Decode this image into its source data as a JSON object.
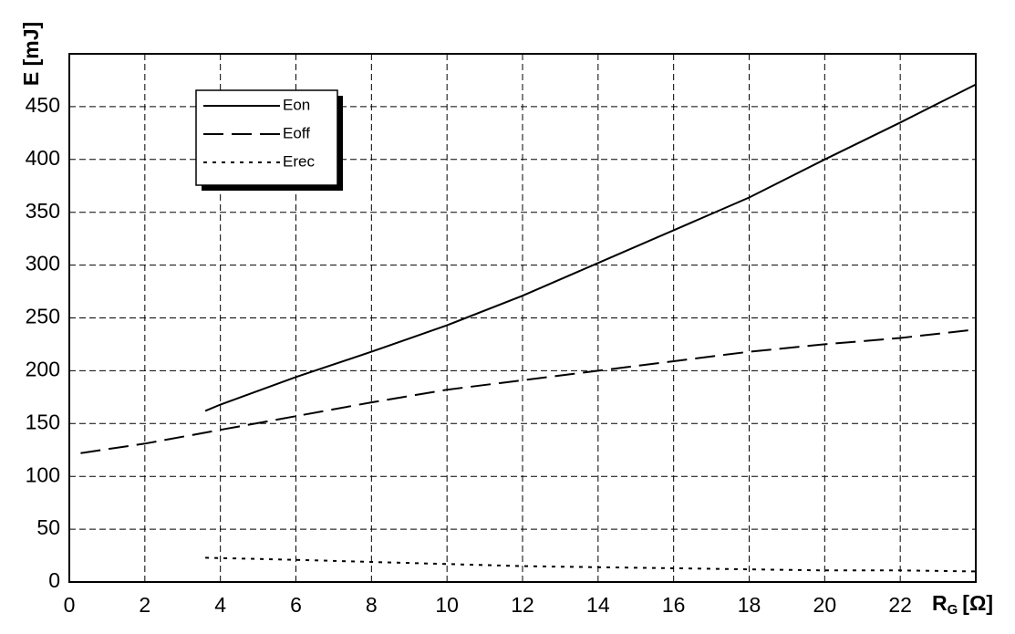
{
  "chart_data": {
    "type": "line",
    "xlabel": "R",
    "xlabel_sub": "G",
    "xunit": "[Ω]",
    "ylabel": "E [mJ]",
    "xlim": [
      0,
      24
    ],
    "ylim": [
      0,
      500
    ],
    "x_ticks": [
      "0",
      "2",
      "4",
      "6",
      "8",
      "10",
      "12",
      "14",
      "16",
      "18",
      "20",
      "22"
    ],
    "y_ticks": [
      "0",
      "50",
      "100",
      "150",
      "200",
      "250",
      "300",
      "350",
      "400",
      "450"
    ],
    "grid": true,
    "legend_position": "top-left",
    "series": [
      {
        "name": "Eon",
        "style": "solid",
        "x": [
          3.6,
          4,
          6,
          8,
          10,
          12,
          14,
          16,
          18,
          20,
          22,
          24
        ],
        "y": [
          162,
          168,
          194,
          218,
          243,
          271,
          302,
          333,
          364,
          400,
          435,
          471
        ]
      },
      {
        "name": "Eoff",
        "style": "dashed",
        "x": [
          0.3,
          2,
          4,
          6,
          8,
          10,
          12,
          14,
          16,
          18,
          20,
          22,
          24
        ],
        "y": [
          122,
          131,
          144,
          157,
          170,
          182,
          191,
          200,
          209,
          218,
          225,
          231,
          239
        ]
      },
      {
        "name": "Erec",
        "style": "dotted",
        "x": [
          3.6,
          6,
          8,
          10,
          12,
          14,
          16,
          18,
          20,
          22,
          24
        ],
        "y": [
          23,
          21,
          19,
          17,
          15,
          14,
          13,
          12,
          11,
          11,
          10
        ]
      }
    ]
  }
}
